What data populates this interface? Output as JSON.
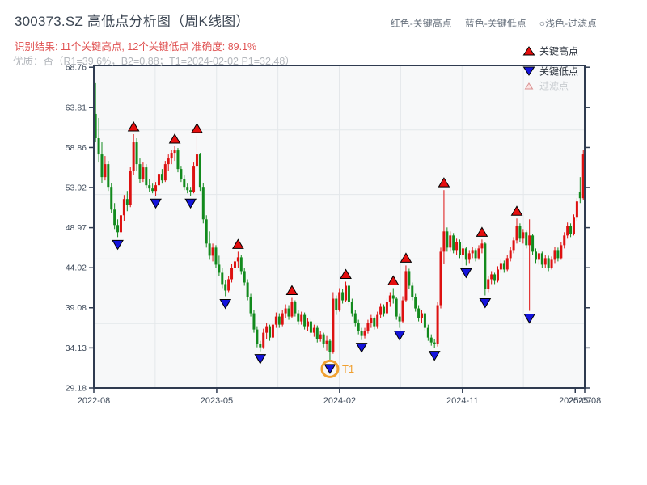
{
  "header": {
    "title": "300373.SZ 高低点分析图（周K线图）",
    "subtitle_red": "识别结果: 11个关键高点, 12个关键低点  准确度: 89.1%",
    "subtitle_gray": "优质：否（R1=39.6%，B2=0.88；T1=2024-02-02 P1=32.48）",
    "legend_note": [
      "红色-关键高点",
      "蓝色-关键低点",
      "○浅色-过滤点"
    ]
  },
  "chart_data": {
    "type": "candlestick",
    "title": "300373.SZ 高低点分析图（周K线图）",
    "symbol": "300373.SZ",
    "period": "weekly",
    "key_high_count": 11,
    "key_low_count": 12,
    "accuracy": "89.1%",
    "ylim": [
      29.18,
      68.76
    ],
    "y_ticks": [
      68.76,
      63.81,
      58.86,
      53.92,
      48.97,
      44.02,
      39.08,
      34.13,
      29.18
    ],
    "x_ticks": [
      {
        "label": "2022-08",
        "week": 0
      },
      {
        "label": "2023-05",
        "week": 38.8
      },
      {
        "label": "2024-02",
        "week": 77.6
      },
      {
        "label": "2024-11",
        "week": 116.4
      },
      {
        "label": "2025-07",
        "week": 152.0
      },
      {
        "label": "2025-08",
        "week": 155.0
      }
    ],
    "total_weeks": 155,
    "grid": {
      "v_divisions": 8,
      "h_divisions": 5
    },
    "legend": [
      {
        "label": "关键高点",
        "marker": "up-red"
      },
      {
        "label": "关键低点",
        "marker": "down-blue"
      },
      {
        "label": "过滤点",
        "marker": "up-light"
      }
    ],
    "colors": {
      "up_candle": "#dd1111",
      "down_candle": "#128a1d",
      "high_marker": "#e50e0e",
      "low_marker": "#1414dd",
      "filtered_marker": "#fbe3e3",
      "annotation": "#f0a030",
      "spine": "#2f3b50",
      "grid": "#e4e7ea",
      "plot_bg": "#f7f8f9",
      "tick_label": "#3f4b5b"
    },
    "candles": [
      [
        63.0,
        66.8,
        59.5,
        60.0
      ],
      [
        60.0,
        62.5,
        57.0,
        58.0
      ],
      [
        58.0,
        59.5,
        54.5,
        55.2
      ],
      [
        55.2,
        57.8,
        54.8,
        56.8
      ],
      [
        56.8,
        57.2,
        53.5,
        54.0
      ],
      [
        54.0,
        54.5,
        50.8,
        51.2
      ],
      [
        51.2,
        52.0,
        48.8,
        49.3
      ],
      [
        49.3,
        50.0,
        47.8,
        48.4
      ],
      [
        48.4,
        51.0,
        48.0,
        50.5
      ],
      [
        50.5,
        53.0,
        49.8,
        52.5
      ],
      [
        52.5,
        53.5,
        51.0,
        51.8
      ],
      [
        51.8,
        56.5,
        51.5,
        56.0
      ],
      [
        56.0,
        60.5,
        55.5,
        59.5
      ],
      [
        59.5,
        60.0,
        56.0,
        56.8
      ],
      [
        56.8,
        57.5,
        54.5,
        55.0
      ],
      [
        55.0,
        57.0,
        54.6,
        56.4
      ],
      [
        56.4,
        56.8,
        53.8,
        54.2
      ],
      [
        54.2,
        55.0,
        53.4,
        53.8
      ],
      [
        53.8,
        54.4,
        53.2,
        53.5
      ],
      [
        53.5,
        54.6,
        52.9,
        54.2
      ],
      [
        54.2,
        56.0,
        54.0,
        55.6
      ],
      [
        55.6,
        56.2,
        54.4,
        54.8
      ],
      [
        54.8,
        57.2,
        54.6,
        56.8
      ],
      [
        56.8,
        58.0,
        56.0,
        57.5
      ],
      [
        57.5,
        58.6,
        56.8,
        58.2
      ],
      [
        58.2,
        59.0,
        57.2,
        58.5
      ],
      [
        58.5,
        58.8,
        55.8,
        56.2
      ],
      [
        56.2,
        56.6,
        54.6,
        55.0
      ],
      [
        55.0,
        55.4,
        53.6,
        54.0
      ],
      [
        54.0,
        54.4,
        53.2,
        53.6
      ],
      [
        53.6,
        54.0,
        52.9,
        53.4
      ],
      [
        53.4,
        57.0,
        53.2,
        56.6
      ],
      [
        56.6,
        60.3,
        56.0,
        58.0
      ],
      [
        58.0,
        58.2,
        53.5,
        54.0
      ],
      [
        54.0,
        54.5,
        49.5,
        50.0
      ],
      [
        50.0,
        50.5,
        46.5,
        47.0
      ],
      [
        47.0,
        48.5,
        45.0,
        45.5
      ],
      [
        45.5,
        47.0,
        44.8,
        46.5
      ],
      [
        46.5,
        46.8,
        44.0,
        44.4
      ],
      [
        44.4,
        45.5,
        43.0,
        43.4
      ],
      [
        43.4,
        44.0,
        41.5,
        42.0
      ],
      [
        42.0,
        42.5,
        40.5,
        41.2
      ],
      [
        41.2,
        43.0,
        41.0,
        42.6
      ],
      [
        42.6,
        44.5,
        42.2,
        44.0
      ],
      [
        44.0,
        45.2,
        43.5,
        44.8
      ],
      [
        44.8,
        46.0,
        44.0,
        45.3
      ],
      [
        45.3,
        45.6,
        43.2,
        43.6
      ],
      [
        43.6,
        44.0,
        41.8,
        42.2
      ],
      [
        42.2,
        42.6,
        40.0,
        40.4
      ],
      [
        40.4,
        40.8,
        38.0,
        38.4
      ],
      [
        38.4,
        38.8,
        36.0,
        36.4
      ],
      [
        36.4,
        36.8,
        34.2,
        34.6
      ],
      [
        34.6,
        35.0,
        33.7,
        34.2
      ],
      [
        34.2,
        36.5,
        34.0,
        36.0
      ],
      [
        36.0,
        37.2,
        35.2,
        36.8
      ],
      [
        36.8,
        37.0,
        35.0,
        35.4
      ],
      [
        35.4,
        37.5,
        35.2,
        37.0
      ],
      [
        37.0,
        38.5,
        36.6,
        38.0
      ],
      [
        38.0,
        38.4,
        36.6,
        37.0
      ],
      [
        37.0,
        38.8,
        36.8,
        38.4
      ],
      [
        38.4,
        39.5,
        37.8,
        39.0
      ],
      [
        39.0,
        39.4,
        37.6,
        38.0
      ],
      [
        38.0,
        40.3,
        37.8,
        39.8
      ],
      [
        39.8,
        40.0,
        38.0,
        38.4
      ],
      [
        38.4,
        38.8,
        37.0,
        37.4
      ],
      [
        37.4,
        38.6,
        37.0,
        38.2
      ],
      [
        38.2,
        38.5,
        36.4,
        36.8
      ],
      [
        36.8,
        37.8,
        36.2,
        37.4
      ],
      [
        37.4,
        37.7,
        35.6,
        36.0
      ],
      [
        36.0,
        37.0,
        35.5,
        36.6
      ],
      [
        36.6,
        36.9,
        34.8,
        35.2
      ],
      [
        35.2,
        36.2,
        34.9,
        35.8
      ],
      [
        35.8,
        36.0,
        34.2,
        34.6
      ],
      [
        34.6,
        35.6,
        33.8,
        35.0
      ],
      [
        35.0,
        35.2,
        32.48,
        33.6
      ],
      [
        33.6,
        41.0,
        33.4,
        40.2
      ],
      [
        40.2,
        40.6,
        38.2,
        38.8
      ],
      [
        38.8,
        41.5,
        38.6,
        41.0
      ],
      [
        41.0,
        41.4,
        39.6,
        40.0
      ],
      [
        40.0,
        42.3,
        39.8,
        41.8
      ],
      [
        41.8,
        42.0,
        39.4,
        39.8
      ],
      [
        39.8,
        40.2,
        38.0,
        38.4
      ],
      [
        38.4,
        38.8,
        36.8,
        37.2
      ],
      [
        37.2,
        37.6,
        35.8,
        36.2
      ],
      [
        36.2,
        36.6,
        35.1,
        35.6
      ],
      [
        35.6,
        36.6,
        35.3,
        36.2
      ],
      [
        36.2,
        37.6,
        35.9,
        37.2
      ],
      [
        37.2,
        38.2,
        36.6,
        37.8
      ],
      [
        37.8,
        38.0,
        36.4,
        36.8
      ],
      [
        36.8,
        38.6,
        36.5,
        38.2
      ],
      [
        38.2,
        39.6,
        37.8,
        39.2
      ],
      [
        39.2,
        39.5,
        38.0,
        38.4
      ],
      [
        38.4,
        40.2,
        38.2,
        39.8
      ],
      [
        39.8,
        41.0,
        39.2,
        40.6
      ],
      [
        40.6,
        41.5,
        39.6,
        40.2
      ],
      [
        40.2,
        40.4,
        37.6,
        38.0
      ],
      [
        38.0,
        38.4,
        36.6,
        37.4
      ],
      [
        37.4,
        40.5,
        37.2,
        40.0
      ],
      [
        40.0,
        44.3,
        39.8,
        43.6
      ],
      [
        43.6,
        43.9,
        41.4,
        41.8
      ],
      [
        41.8,
        42.2,
        40.0,
        40.4
      ],
      [
        40.4,
        40.8,
        38.6,
        39.0
      ],
      [
        39.0,
        39.4,
        37.4,
        37.8
      ],
      [
        37.8,
        38.8,
        37.2,
        38.4
      ],
      [
        38.4,
        38.6,
        36.2,
        36.6
      ],
      [
        36.6,
        37.0,
        35.0,
        35.4
      ],
      [
        35.4,
        35.8,
        34.4,
        34.8
      ],
      [
        34.8,
        35.2,
        34.1,
        34.6
      ],
      [
        34.6,
        39.8,
        34.3,
        39.4
      ],
      [
        39.4,
        46.5,
        39.0,
        46.0
      ],
      [
        46.0,
        53.6,
        44.5,
        48.5
      ],
      [
        48.5,
        49.0,
        46.0,
        46.5
      ],
      [
        46.5,
        48.5,
        46.0,
        48.0
      ],
      [
        48.0,
        48.3,
        45.8,
        46.2
      ],
      [
        46.2,
        47.6,
        45.6,
        47.2
      ],
      [
        47.2,
        47.5,
        45.2,
        45.6
      ],
      [
        45.6,
        46.8,
        45.0,
        46.4
      ],
      [
        46.4,
        46.6,
        44.3,
        45.0
      ],
      [
        45.0,
        46.2,
        44.6,
        45.8
      ],
      [
        45.8,
        46.6,
        45.2,
        46.2
      ],
      [
        46.2,
        46.4,
        44.8,
        45.2
      ],
      [
        45.2,
        46.8,
        45.0,
        46.4
      ],
      [
        46.4,
        47.5,
        45.8,
        47.0
      ],
      [
        47.0,
        47.2,
        40.6,
        41.4
      ],
      [
        41.4,
        43.0,
        41.0,
        42.6
      ],
      [
        42.6,
        43.6,
        42.0,
        43.2
      ],
      [
        43.2,
        43.4,
        42.0,
        42.4
      ],
      [
        42.4,
        44.2,
        42.2,
        43.8
      ],
      [
        43.8,
        45.0,
        43.4,
        44.6
      ],
      [
        44.6,
        44.9,
        43.4,
        43.8
      ],
      [
        43.8,
        45.6,
        43.6,
        45.2
      ],
      [
        45.2,
        46.6,
        44.8,
        46.2
      ],
      [
        46.2,
        47.8,
        45.8,
        47.4
      ],
      [
        47.4,
        50.1,
        47.0,
        49.2
      ],
      [
        49.2,
        49.5,
        47.2,
        47.6
      ],
      [
        47.6,
        48.8,
        47.0,
        48.4
      ],
      [
        48.4,
        48.6,
        46.4,
        46.8
      ],
      [
        46.8,
        50.0,
        38.7,
        48.0
      ],
      [
        48.0,
        48.2,
        45.6,
        46.0
      ],
      [
        46.0,
        46.4,
        44.6,
        45.0
      ],
      [
        45.0,
        46.2,
        44.4,
        45.8
      ],
      [
        45.8,
        46.0,
        44.0,
        44.4
      ],
      [
        44.4,
        45.6,
        44.0,
        45.2
      ],
      [
        45.2,
        45.5,
        43.6,
        44.0
      ],
      [
        44.0,
        45.4,
        43.8,
        45.0
      ],
      [
        45.0,
        46.6,
        44.6,
        46.2
      ],
      [
        46.2,
        46.5,
        44.8,
        45.2
      ],
      [
        45.2,
        47.2,
        45.0,
        46.8
      ],
      [
        46.8,
        48.4,
        46.4,
        48.0
      ],
      [
        48.0,
        49.6,
        47.6,
        49.2
      ],
      [
        49.2,
        49.5,
        47.8,
        48.2
      ],
      [
        48.2,
        50.6,
        48.0,
        50.2
      ],
      [
        50.2,
        52.6,
        49.8,
        52.2
      ],
      [
        53.4,
        55.2,
        52.0,
        52.6
      ],
      [
        52.6,
        58.6,
        52.4,
        58.0
      ]
    ],
    "key_highs": [
      [
        12,
        60.5
      ],
      [
        25,
        59.0
      ],
      [
        32,
        60.3
      ],
      [
        45,
        46.0
      ],
      [
        62,
        40.3
      ],
      [
        79,
        42.3
      ],
      [
        94,
        41.5
      ],
      [
        98,
        44.3
      ],
      [
        110,
        53.6
      ],
      [
        122,
        47.5
      ],
      [
        133,
        50.1
      ]
    ],
    "key_lows": [
      [
        7,
        47.8
      ],
      [
        19,
        52.9
      ],
      [
        30,
        52.9
      ],
      [
        41,
        40.5
      ],
      [
        52,
        33.7
      ],
      [
        74,
        32.48
      ],
      [
        84,
        35.1
      ],
      [
        96,
        36.6
      ],
      [
        107,
        34.1
      ],
      [
        117,
        44.3
      ],
      [
        123,
        40.6
      ],
      [
        137,
        38.7
      ]
    ],
    "filtered_points": [],
    "t1_annotation": {
      "week": 74,
      "price": 32.48,
      "label": "T1",
      "date": "2024-02-02"
    }
  }
}
